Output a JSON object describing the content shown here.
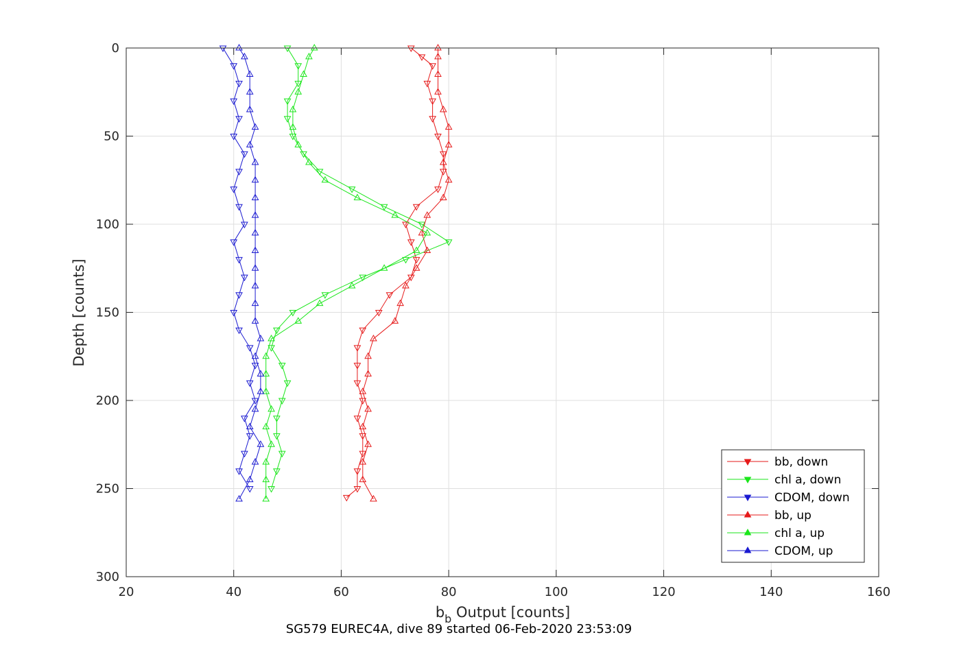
{
  "chart_data": {
    "type": "line",
    "title": "",
    "caption": "SG579 EUREC4A, dive 89 started 06-Feb-2020 23:53:09",
    "xlabel_main": "b",
    "xlabel_sub": "b",
    "xlabel_rest": " Output [counts]",
    "ylabel": "Depth [counts]",
    "xlim": [
      20,
      160
    ],
    "ylim": [
      0,
      300
    ],
    "y_reversed": true,
    "x_ticks": [
      20,
      40,
      60,
      80,
      100,
      120,
      140,
      160
    ],
    "y_ticks": [
      0,
      50,
      100,
      150,
      200,
      250,
      300
    ],
    "x_tick_labels": [
      "20",
      "40",
      "60",
      "80",
      "100",
      "120",
      "140",
      "160"
    ],
    "y_tick_labels": [
      "0",
      "50",
      "100",
      "150",
      "200",
      "250",
      "300"
    ],
    "grid": true,
    "legend_position": "bottom-right",
    "series": [
      {
        "name": "bb, down",
        "color": "#e61a1a",
        "marker": "triangle-down",
        "points": [
          [
            73,
            0
          ],
          [
            75,
            5
          ],
          [
            77,
            10
          ],
          [
            76,
            20
          ],
          [
            77,
            30
          ],
          [
            77,
            40
          ],
          [
            78,
            50
          ],
          [
            79,
            60
          ],
          [
            79,
            70
          ],
          [
            78,
            80
          ],
          [
            74,
            90
          ],
          [
            72,
            100
          ],
          [
            73,
            110
          ],
          [
            74,
            120
          ],
          [
            73,
            130
          ],
          [
            69,
            140
          ],
          [
            67,
            150
          ],
          [
            64,
            160
          ],
          [
            63,
            170
          ],
          [
            63,
            180
          ],
          [
            63,
            190
          ],
          [
            64,
            200
          ],
          [
            63,
            210
          ],
          [
            64,
            220
          ],
          [
            64,
            230
          ],
          [
            63,
            240
          ],
          [
            63,
            250
          ],
          [
            61,
            255
          ]
        ]
      },
      {
        "name": "chl a, down",
        "color": "#1ae61a",
        "marker": "triangle-down",
        "points": [
          [
            50,
            0
          ],
          [
            52,
            10
          ],
          [
            52,
            20
          ],
          [
            50,
            30
          ],
          [
            50,
            40
          ],
          [
            51,
            50
          ],
          [
            53,
            60
          ],
          [
            56,
            70
          ],
          [
            62,
            80
          ],
          [
            68,
            90
          ],
          [
            75,
            100
          ],
          [
            80,
            110
          ],
          [
            72,
            120
          ],
          [
            64,
            130
          ],
          [
            57,
            140
          ],
          [
            51,
            150
          ],
          [
            48,
            160
          ],
          [
            47,
            170
          ],
          [
            49,
            180
          ],
          [
            50,
            190
          ],
          [
            49,
            200
          ],
          [
            48,
            210
          ],
          [
            48,
            220
          ],
          [
            49,
            230
          ],
          [
            48,
            240
          ],
          [
            47,
            250
          ]
        ]
      },
      {
        "name": "CDOM, down",
        "color": "#1a1ad1",
        "marker": "triangle-down",
        "points": [
          [
            38,
            0
          ],
          [
            40,
            10
          ],
          [
            41,
            20
          ],
          [
            40,
            30
          ],
          [
            41,
            40
          ],
          [
            40,
            50
          ],
          [
            42,
            60
          ],
          [
            41,
            70
          ],
          [
            40,
            80
          ],
          [
            41,
            90
          ],
          [
            42,
            100
          ],
          [
            40,
            110
          ],
          [
            41,
            120
          ],
          [
            42,
            130
          ],
          [
            41,
            140
          ],
          [
            40,
            150
          ],
          [
            41,
            160
          ],
          [
            43,
            170
          ],
          [
            44,
            180
          ],
          [
            43,
            190
          ],
          [
            44,
            200
          ],
          [
            42,
            210
          ],
          [
            43,
            220
          ],
          [
            42,
            230
          ],
          [
            41,
            240
          ],
          [
            43,
            250
          ]
        ]
      },
      {
        "name": "bb, up",
        "color": "#e61a1a",
        "marker": "triangle-up",
        "points": [
          [
            66,
            256
          ],
          [
            64,
            245
          ],
          [
            64,
            235
          ],
          [
            65,
            225
          ],
          [
            64,
            215
          ],
          [
            65,
            205
          ],
          [
            64,
            195
          ],
          [
            65,
            185
          ],
          [
            65,
            175
          ],
          [
            66,
            165
          ],
          [
            70,
            155
          ],
          [
            71,
            145
          ],
          [
            72,
            135
          ],
          [
            74,
            125
          ],
          [
            76,
            115
          ],
          [
            75,
            105
          ],
          [
            76,
            95
          ],
          [
            79,
            85
          ],
          [
            80,
            75
          ],
          [
            79,
            65
          ],
          [
            80,
            55
          ],
          [
            80,
            45
          ],
          [
            79,
            35
          ],
          [
            78,
            25
          ],
          [
            78,
            15
          ],
          [
            78,
            5
          ],
          [
            78,
            0
          ]
        ]
      },
      {
        "name": "chl a, up",
        "color": "#1ae61a",
        "marker": "triangle-up",
        "points": [
          [
            46,
            256
          ],
          [
            46,
            245
          ],
          [
            46,
            235
          ],
          [
            47,
            225
          ],
          [
            46,
            215
          ],
          [
            47,
            205
          ],
          [
            46,
            195
          ],
          [
            46,
            185
          ],
          [
            46,
            175
          ],
          [
            47,
            165
          ],
          [
            52,
            155
          ],
          [
            56,
            145
          ],
          [
            62,
            135
          ],
          [
            68,
            125
          ],
          [
            74,
            115
          ],
          [
            76,
            105
          ],
          [
            70,
            95
          ],
          [
            63,
            85
          ],
          [
            57,
            75
          ],
          [
            54,
            65
          ],
          [
            52,
            55
          ],
          [
            51,
            45
          ],
          [
            51,
            35
          ],
          [
            52,
            25
          ],
          [
            53,
            15
          ],
          [
            54,
            5
          ],
          [
            55,
            0
          ]
        ]
      },
      {
        "name": "CDOM, up",
        "color": "#1a1ad1",
        "marker": "triangle-up",
        "points": [
          [
            41,
            256
          ],
          [
            43,
            245
          ],
          [
            44,
            235
          ],
          [
            45,
            225
          ],
          [
            43,
            215
          ],
          [
            44,
            205
          ],
          [
            45,
            195
          ],
          [
            45,
            185
          ],
          [
            44,
            175
          ],
          [
            45,
            165
          ],
          [
            44,
            155
          ],
          [
            44,
            145
          ],
          [
            44,
            135
          ],
          [
            44,
            125
          ],
          [
            44,
            115
          ],
          [
            44,
            105
          ],
          [
            44,
            95
          ],
          [
            44,
            85
          ],
          [
            44,
            75
          ],
          [
            44,
            65
          ],
          [
            43,
            55
          ],
          [
            44,
            45
          ],
          [
            43,
            35
          ],
          [
            43,
            25
          ],
          [
            43,
            15
          ],
          [
            42,
            5
          ],
          [
            41,
            0
          ]
        ]
      }
    ]
  }
}
